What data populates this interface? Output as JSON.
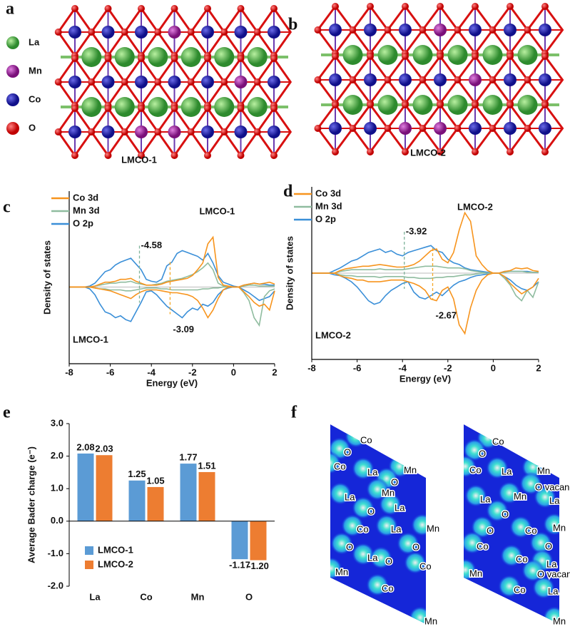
{
  "panel_labels": [
    "a",
    "b",
    "c",
    "d",
    "e",
    "f"
  ],
  "structures": {
    "legend": [
      "La",
      "Mn",
      "Co",
      "O"
    ],
    "captions": [
      "LMCO-1",
      "LMCO-2"
    ]
  },
  "charge_maps": [
    {
      "labels": [
        "Co",
        "O",
        "Co",
        "La",
        "Mn",
        "O",
        "La",
        "Mn",
        "O",
        "La",
        "Co",
        "La",
        "Mn",
        "O",
        "Mn",
        "La",
        "O",
        "Co",
        "O",
        "Co",
        "Mn"
      ]
    },
    {
      "labels": [
        "Co",
        "O",
        "Co",
        "La",
        "Mn",
        "O vacancy",
        "La",
        "Mn",
        "La",
        "O",
        "Co",
        "O",
        "Mn",
        "O",
        "Co",
        "Mn",
        "Co",
        "La",
        "O vacancy",
        "Co",
        "La",
        "Mn"
      ]
    }
  ],
  "chart_data": [
    {
      "type": "line",
      "title": "LMCO-1",
      "corner_label": "LMCO-1",
      "x_label": "Energy (eV)",
      "y_label": "Density of states",
      "x": [
        -8,
        -7.75,
        -7.5,
        -7.25,
        -7,
        -6.75,
        -6.5,
        -6.25,
        -6,
        -5.75,
        -5.5,
        -5.25,
        -5,
        -4.75,
        -4.5,
        -4.25,
        -4,
        -3.75,
        -3.5,
        -3.25,
        -3,
        -2.75,
        -2.5,
        -2.25,
        -2,
        -1.75,
        -1.5,
        -1.25,
        -1,
        -0.75,
        -0.5,
        -0.25,
        0,
        0.25,
        0.5,
        0.75,
        1,
        1.25,
        1.5,
        1.75,
        2
      ],
      "xlim": [
        -8,
        2
      ],
      "xticks": [
        -8,
        -6,
        -4,
        -2,
        0,
        2
      ],
      "ylim": [
        -8,
        10
      ],
      "series": [
        {
          "name": "Co 3d",
          "color": "#f7941d",
          "values": [
            0,
            0,
            0,
            0,
            0,
            0.1,
            0.3,
            0.5,
            0.5,
            0.6,
            0.8,
            0.8,
            0.9,
            0.6,
            0.4,
            0.2,
            0.2,
            0.2,
            0.3,
            0.5,
            0.6,
            0.7,
            0.8,
            0.9,
            1.2,
            1.8,
            2.5,
            4.5,
            5.2,
            1.0,
            0.2,
            0.1,
            0,
            0,
            0.2,
            0.3,
            0.4,
            0.3,
            0.4,
            0.5,
            0.3
          ],
          "values_down": [
            0,
            0,
            0,
            0,
            0,
            -0.1,
            -0.2,
            -0.3,
            -0.4,
            -0.6,
            -0.8,
            -1.0,
            -1.2,
            -0.8,
            -0.5,
            -0.3,
            -0.3,
            -0.3,
            -0.4,
            -0.5,
            -0.6,
            -0.6,
            -0.7,
            -0.8,
            -1.0,
            -1.4,
            -2.2,
            -3.2,
            -2.4,
            -1.2,
            -0.3,
            0,
            0,
            0,
            -0.5,
            -1.0,
            -1.6,
            -2.0,
            -1.8,
            -2.4,
            -0.4
          ]
        },
        {
          "name": "Mn 3d",
          "color": "#8fbc9f",
          "values": [
            0,
            0,
            0,
            0,
            0,
            0.1,
            0.2,
            0.3,
            0.4,
            0.4,
            0.5,
            0.5,
            0.6,
            0.4,
            0.3,
            0.2,
            0.2,
            0.3,
            0.4,
            0.6,
            0.7,
            0.8,
            0.9,
            1.1,
            1.3,
            1.6,
            2.0,
            2.5,
            1.8,
            0.4,
            0.1,
            0,
            0,
            0,
            0.1,
            0.2,
            0.2,
            0.1,
            0.1,
            0.1,
            0.1
          ],
          "values_down": [
            0,
            0,
            0,
            0,
            0,
            -0.1,
            -0.2,
            -0.2,
            -0.3,
            -0.3,
            -0.3,
            -0.4,
            -0.4,
            -0.3,
            -0.2,
            -0.1,
            -0.1,
            -0.1,
            -0.2,
            -0.2,
            -0.3,
            -0.3,
            -0.3,
            -0.3,
            -0.3,
            -0.3,
            -0.2,
            -0.2,
            -0.1,
            -0.1,
            0,
            0,
            0,
            0,
            -0.6,
            -1.4,
            -3.2,
            -4.0,
            -1.0,
            -0.4,
            -0.2
          ]
        },
        {
          "name": "O 2p",
          "color": "#3a8fd8",
          "values": [
            0,
            0,
            0,
            0,
            0.1,
            0.4,
            1.0,
            1.6,
            1.8,
            2.3,
            2.6,
            2.8,
            3.0,
            2.4,
            1.8,
            0.8,
            0.6,
            0.5,
            0.8,
            2.2,
            2.6,
            3.5,
            3.8,
            3.6,
            3.4,
            3.2,
            2.8,
            3.5,
            2.5,
            1.2,
            0.5,
            0.3,
            0.1,
            0,
            0.2,
            0.3,
            0.4,
            0.3,
            0.3,
            0.2,
            0.2
          ],
          "values_down": [
            0,
            0,
            0,
            0,
            -0.2,
            -0.8,
            -1.8,
            -2.6,
            -2.8,
            -3.2,
            -3.0,
            -3.4,
            -3.6,
            -2.6,
            -1.6,
            -0.5,
            -0.4,
            -0.8,
            -1.4,
            -2.0,
            -2.4,
            -2.8,
            -3.2,
            -2.6,
            -2.2,
            -2.4,
            -1.8,
            -2.0,
            -1.6,
            -0.8,
            -0.3,
            -0.1,
            0,
            0,
            -0.3,
            -0.6,
            -1.0,
            -1.4,
            -1.2,
            -1.0,
            -0.4
          ]
        }
      ],
      "annotations": [
        {
          "value": -4.58,
          "color": "#7fb39a"
        },
        {
          "value": -3.09,
          "color": "#f5a623"
        }
      ]
    },
    {
      "type": "line",
      "title": "LMCO-2",
      "corner_label": "LMCO-2",
      "x_label": "Energy (eV)",
      "y_label": "Density of states",
      "x": [
        -8,
        -7.75,
        -7.5,
        -7.25,
        -7,
        -6.75,
        -6.5,
        -6.25,
        -6,
        -5.75,
        -5.5,
        -5.25,
        -5,
        -4.75,
        -4.5,
        -4.25,
        -4,
        -3.75,
        -3.5,
        -3.25,
        -3,
        -2.75,
        -2.5,
        -2.25,
        -2,
        -1.75,
        -1.5,
        -1.25,
        -1,
        -0.75,
        -0.5,
        -0.25,
        0,
        0.25,
        0.5,
        0.75,
        1,
        1.25,
        1.5,
        1.75,
        2
      ],
      "xlim": [
        -8,
        2
      ],
      "xticks": [
        -8,
        -6,
        -4,
        -2,
        0,
        2
      ],
      "ylim": [
        -10,
        10
      ],
      "series": [
        {
          "name": "Co 3d",
          "color": "#f7941d",
          "values": [
            0,
            0,
            0,
            0,
            0,
            0.3,
            0.5,
            0.6,
            0.7,
            0.8,
            0.8,
            0.9,
            1.0,
            0.9,
            0.8,
            0.7,
            0.7,
            0.8,
            1.0,
            1.4,
            2.0,
            2.6,
            2.8,
            1.6,
            1.2,
            2.4,
            5.0,
            7.0,
            6.0,
            2.0,
            1.0,
            0.3,
            0,
            0,
            0.2,
            0.3,
            0.6,
            0.5,
            0.6,
            0.3,
            0.2
          ],
          "values_down": [
            0,
            0,
            0,
            0,
            0,
            -0.3,
            -0.5,
            -0.6,
            -0.8,
            -0.8,
            -1.0,
            -1.0,
            -1.0,
            -0.9,
            -0.8,
            -0.8,
            -0.8,
            -1.0,
            -1.2,
            -1.5,
            -2.0,
            -3.0,
            -3.2,
            -2.0,
            -1.6,
            -3.0,
            -6.0,
            -7.0,
            -4.0,
            -2.0,
            -0.8,
            -0.2,
            0,
            0,
            -0.4,
            -1.2,
            -1.8,
            -2.4,
            -2.0,
            -1.6,
            -0.6
          ]
        },
        {
          "name": "Mn 3d",
          "color": "#8fbc9f",
          "values": [
            0,
            0,
            0,
            0,
            0,
            0.2,
            0.3,
            0.4,
            0.4,
            0.4,
            0.4,
            0.4,
            0.5,
            0.4,
            0.4,
            0.4,
            0.4,
            0.5,
            0.6,
            0.7,
            0.8,
            0.8,
            0.8,
            0.7,
            0.6,
            0.6,
            0.6,
            0.5,
            0.3,
            0.2,
            0.1,
            0,
            0,
            0,
            0.1,
            0.2,
            0.2,
            0.2,
            0.1,
            0.1,
            0.1
          ],
          "values_down": [
            0,
            0,
            0,
            0,
            0,
            -0.2,
            -0.3,
            -0.3,
            -0.4,
            -0.4,
            -0.4,
            -0.4,
            -0.5,
            -0.4,
            -0.4,
            -0.4,
            -0.4,
            -0.5,
            -0.5,
            -0.6,
            -0.6,
            -0.6,
            -0.5,
            -0.5,
            -0.4,
            -0.4,
            -0.3,
            -0.2,
            -0.2,
            -0.1,
            0,
            0,
            0,
            0,
            -0.6,
            -1.4,
            -2.6,
            -3.2,
            -2.0,
            -2.8,
            -1.0
          ]
        },
        {
          "name": "O 2p",
          "color": "#3a8fd8",
          "values": [
            0,
            0,
            0,
            0,
            0.3,
            0.6,
            1.0,
            1.4,
            1.6,
            2.0,
            2.4,
            2.6,
            2.8,
            2.4,
            2.6,
            2.2,
            2.0,
            2.4,
            2.6,
            2.8,
            3.0,
            3.2,
            2.6,
            2.4,
            1.6,
            1.2,
            1.0,
            0.6,
            0.4,
            0.3,
            0.2,
            0.1,
            0,
            0,
            0.2,
            0.2,
            0.2,
            0.2,
            0.2,
            0.1,
            0.1
          ],
          "values_down": [
            0,
            0,
            0,
            0,
            -0.2,
            -0.3,
            -0.6,
            -1.0,
            -1.6,
            -2.4,
            -3.2,
            -3.6,
            -3.4,
            -2.6,
            -2.0,
            -1.6,
            -1.2,
            -1.0,
            -2.2,
            -2.8,
            -3.0,
            -2.6,
            -2.2,
            -2.6,
            -2.0,
            -1.4,
            -1.0,
            -0.8,
            -0.5,
            -0.3,
            -0.2,
            -0.1,
            0,
            0,
            -0.4,
            -0.8,
            -1.4,
            -1.8,
            -2.0,
            -1.6,
            -1.0
          ]
        }
      ],
      "annotations": [
        {
          "value": -3.92,
          "color": "#7fb39a"
        },
        {
          "value": -2.67,
          "color": "#f5a623"
        }
      ]
    },
    {
      "type": "bar",
      "y_label": "Average Bader charge (e⁻)",
      "categories": [
        "La",
        "Co",
        "Mn",
        "O"
      ],
      "ylim": [
        -2,
        3
      ],
      "yticks": [
        {
          "value": 3,
          "label": "3.0"
        },
        {
          "value": 2,
          "label": "2.0"
        },
        {
          "value": 1,
          "label": "1.0"
        },
        {
          "value": 0,
          "label": "0.0"
        },
        {
          "value": -1,
          "label": "-1.0"
        },
        {
          "value": -2,
          "label": "-2.0"
        }
      ],
      "legend": "lower left",
      "series": [
        {
          "name": "LMCO-1",
          "color": "#5b9bd5",
          "label_color": "#4472c4",
          "values": [
            2.08,
            1.25,
            1.77,
            -1.17
          ]
        },
        {
          "name": "LMCO-2",
          "color": "#ed7d31",
          "label_color": "#ed7d31",
          "values": [
            2.03,
            1.05,
            1.51,
            -1.2
          ],
          "value_labels": [
            "2.03",
            "1.05",
            "1.51",
            "-1.20"
          ]
        }
      ]
    }
  ]
}
